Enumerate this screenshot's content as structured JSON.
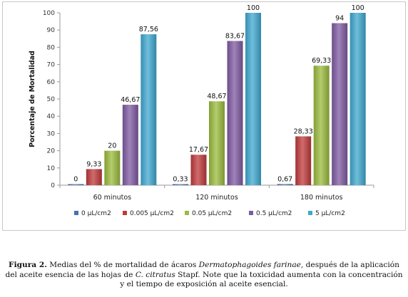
{
  "chart_data": {
    "type": "bar",
    "title": "",
    "xlabel": "",
    "ylabel": "Porcentaje de Mortalidad",
    "ylim": [
      0,
      100
    ],
    "yticks": [
      0,
      10,
      20,
      30,
      40,
      50,
      60,
      70,
      80,
      90,
      100
    ],
    "grid": false,
    "legend_position": "bottom",
    "categories": [
      "60 minutos",
      "120 minutos",
      "180 minutos"
    ],
    "series": [
      {
        "name": "0 µL/cm2",
        "color": "#4f6fb0",
        "values": [
          0,
          0.33,
          0.67
        ],
        "labels": [
          "0",
          "0,33",
          "0,67"
        ]
      },
      {
        "name": "0.005 µL/cm2",
        "color": "#c0393b",
        "values": [
          9.33,
          17.67,
          28.33
        ],
        "labels": [
          "9,33",
          "17,67",
          "28,33"
        ]
      },
      {
        "name": "0.05 µL/cm2",
        "color": "#9bbb3c",
        "values": [
          20,
          48.67,
          69.33
        ],
        "labels": [
          "20",
          "48,67",
          "69,33"
        ]
      },
      {
        "name": "0.5 µL/cm2",
        "color": "#7f5aa2",
        "values": [
          46.67,
          83.67,
          94
        ],
        "labels": [
          "46,67",
          "83,67",
          "94"
        ]
      },
      {
        "name": "5 µL/cm2",
        "color": "#3fa8d0",
        "values": [
          87.56,
          100,
          100
        ],
        "labels": [
          "87,56",
          "100",
          "100"
        ]
      }
    ]
  },
  "caption": {
    "label": "Figura 2.",
    "part1": " Medias del % de mortalidad de ácaros ",
    "species": "Dermatophagoides farinae,",
    "part2": " después de la aplicación del aceite esencia de las hojas de ",
    "plant": "C. citratus",
    "part3": " Stapf. Note que la toxicidad aumenta con la concentración y el tiempo de exposición al aceite esencial."
  }
}
